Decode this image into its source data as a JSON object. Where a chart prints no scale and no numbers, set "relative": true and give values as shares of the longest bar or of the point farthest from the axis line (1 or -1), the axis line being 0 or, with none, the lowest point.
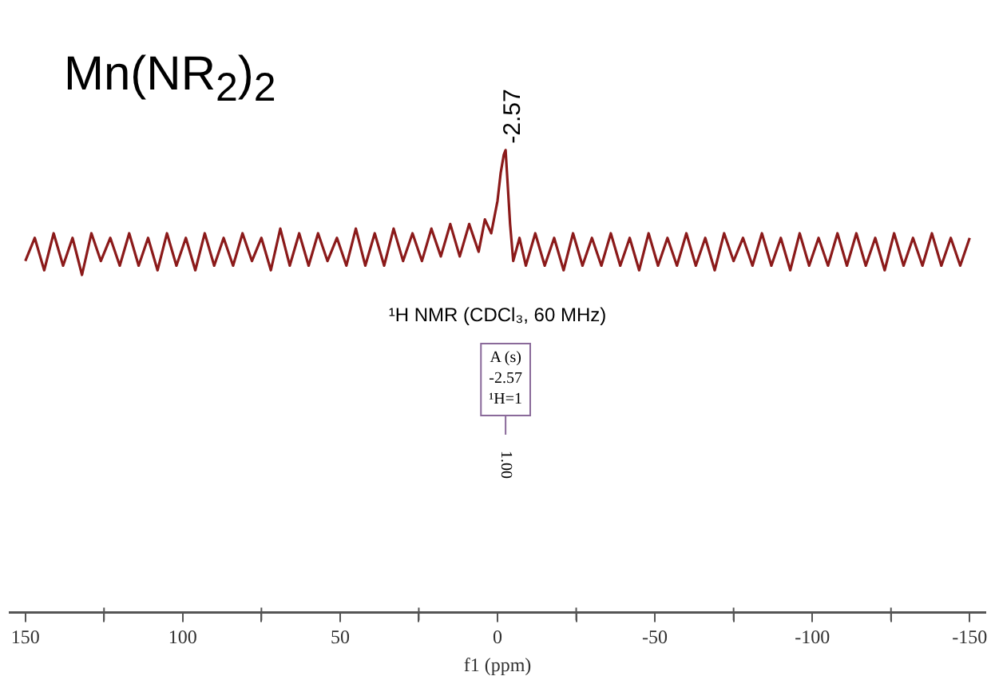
{
  "chart_data": {
    "type": "line",
    "title": "Mn(NR$_{2}$)$_{2}$",
    "subtitle": "¹H NMR (CDCl₃, 60 MHz)",
    "xlabel": "f1 (ppm)",
    "relative": true,
    "xlim": [
      155,
      -155
    ],
    "xticks": [
      150,
      {
        "value": 125,
        "label": null
      },
      100,
      {
        "value": 75,
        "label": null
      },
      50,
      {
        "value": 25,
        "label": null
      },
      0,
      {
        "value": -25,
        "label": null
      },
      -50,
      {
        "value": -75,
        "label": null
      },
      -100,
      {
        "value": -125,
        "label": null
      },
      -150
    ],
    "series": [
      {
        "color": "#8b1a1a",
        "x": [
          150,
          147,
          144,
          141,
          138,
          135,
          132,
          129,
          126,
          123,
          120,
          117,
          114,
          111,
          108,
          105,
          102,
          99,
          96,
          93,
          90,
          87,
          84,
          81,
          78,
          75,
          72,
          69,
          66,
          63,
          60,
          57,
          54,
          51,
          48,
          45,
          42,
          39,
          36,
          33,
          30,
          27,
          24,
          21,
          18,
          15,
          12,
          9,
          6,
          4,
          2,
          0,
          -1,
          -2,
          -2.57,
          -3.2,
          -4,
          -5,
          -7,
          -9,
          -12,
          -15,
          -18,
          -21,
          -24,
          -27,
          -30,
          -33,
          -36,
          -39,
          -42,
          -45,
          -48,
          -51,
          -54,
          -57,
          -60,
          -63,
          -66,
          -69,
          -72,
          -75,
          -78,
          -81,
          -84,
          -87,
          -90,
          -93,
          -96,
          -99,
          -102,
          -105,
          -108,
          -111,
          -114,
          -117,
          -120,
          -123,
          -126,
          -129,
          -132,
          -135,
          -138,
          -141,
          -144,
          -147,
          -150
        ],
        "values": [
          0.76,
          0.81,
          0.74,
          0.82,
          0.75,
          0.81,
          0.73,
          0.82,
          0.76,
          0.81,
          0.75,
          0.82,
          0.75,
          0.81,
          0.74,
          0.82,
          0.75,
          0.81,
          0.74,
          0.82,
          0.75,
          0.81,
          0.75,
          0.82,
          0.76,
          0.81,
          0.74,
          0.83,
          0.75,
          0.82,
          0.75,
          0.82,
          0.76,
          0.81,
          0.75,
          0.83,
          0.75,
          0.82,
          0.75,
          0.83,
          0.76,
          0.82,
          0.76,
          0.83,
          0.77,
          0.84,
          0.77,
          0.84,
          0.78,
          0.85,
          0.82,
          0.89,
          0.95,
          0.99,
          1,
          0.93,
          0.84,
          0.76,
          0.81,
          0.75,
          0.82,
          0.75,
          0.81,
          0.74,
          0.82,
          0.75,
          0.81,
          0.75,
          0.82,
          0.75,
          0.81,
          0.74,
          0.82,
          0.75,
          0.81,
          0.75,
          0.82,
          0.75,
          0.81,
          0.74,
          0.82,
          0.76,
          0.81,
          0.75,
          0.82,
          0.75,
          0.81,
          0.74,
          0.82,
          0.75,
          0.81,
          0.75,
          0.82,
          0.75,
          0.82,
          0.75,
          0.81,
          0.74,
          0.82,
          0.75,
          0.81,
          0.75,
          0.82,
          0.75,
          0.81,
          0.75,
          0.81
        ]
      }
    ],
    "annotations": [
      {
        "text": "-2.57",
        "x": -2.57,
        "y": 1
      },
      "A (s)\n-2.57\n¹H=1",
      "1.00"
    ]
  }
}
